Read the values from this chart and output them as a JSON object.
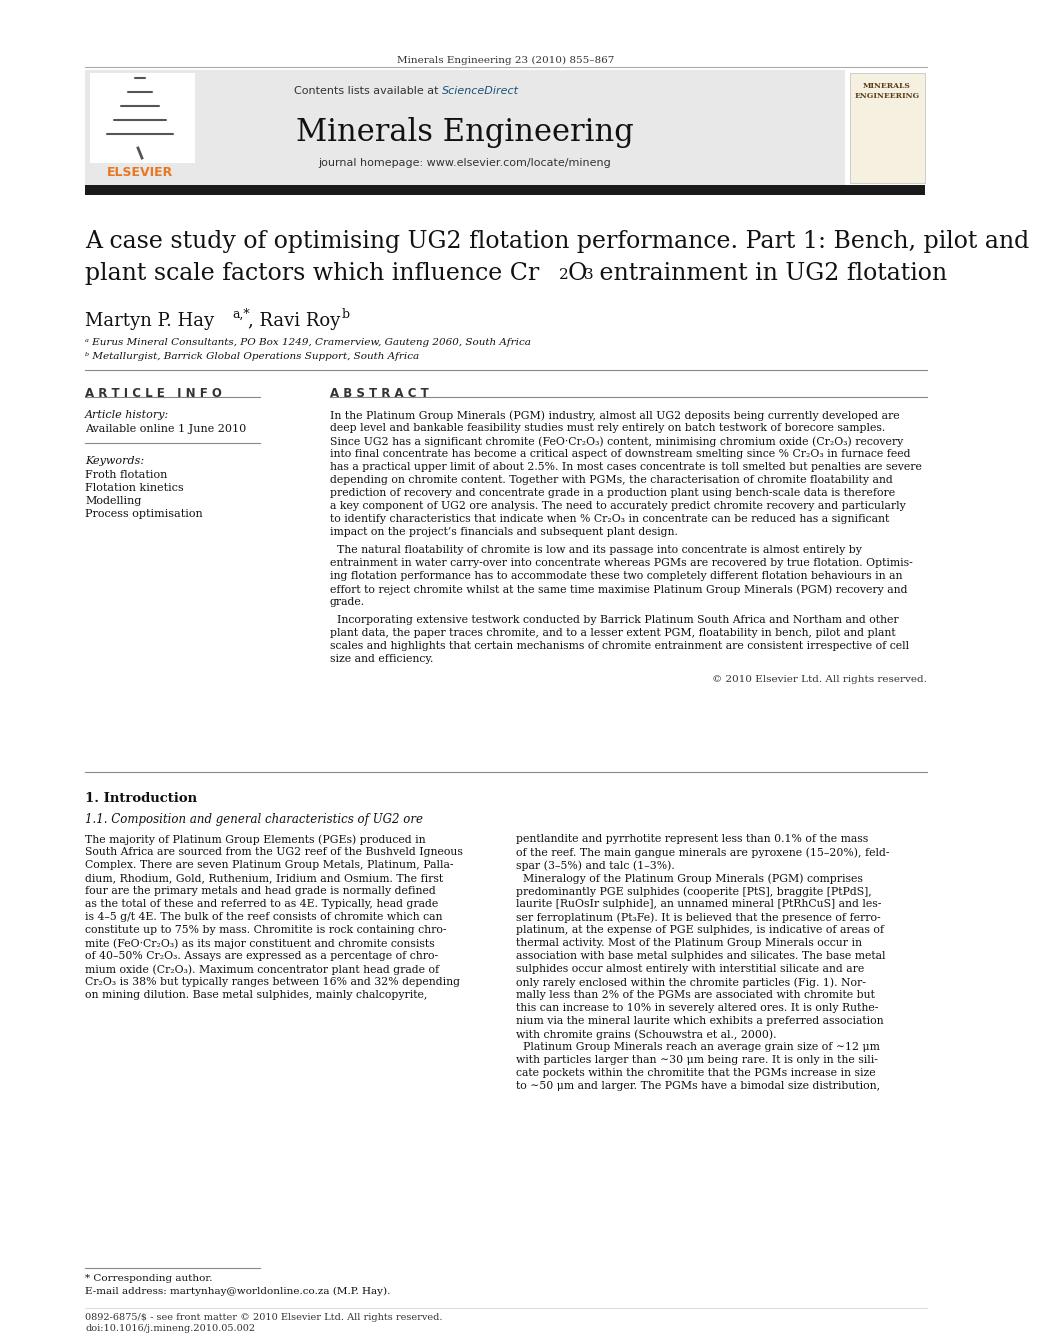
{
  "page_citation": "Minerals Engineering 23 (2010) 855–867",
  "sciencedirect_color": "#1a5276",
  "journal_name": "Minerals Engineering",
  "journal_homepage": "journal homepage: www.elsevier.com/locate/mineng",
  "title_line1": "A case study of optimising UG2 flotation performance. Part 1: Bench, pilot and",
  "title_line2_pre": "plant scale factors which influence Cr",
  "title_line2_post": " entrainment in UG2 flotation",
  "article_info_header": "A R T I C L E   I N F O",
  "abstract_header": "A B S T R A C T",
  "article_history_label": "Article history:",
  "available_online": "Available online 1 June 2010",
  "keywords_label": "Keywords:",
  "keyword1": "Froth flotation",
  "keyword2": "Flotation kinetics",
  "keyword3": "Modelling",
  "keyword4": "Process optimisation",
  "affil_a": "ᵃ Eurus Mineral Consultants, PO Box 1249, Cramerview, Gauteng 2060, South Africa",
  "affil_b": "ᵇ Metallurgist, Barrick Global Operations Support, South Africa",
  "abstract_para1": "In the Platinum Group Minerals (PGM) industry, almost all UG2 deposits being currently developed are\ndeep level and bankable feasibility studies must rely entirely on batch testwork of borecore samples.\nSince UG2 has a significant chromite (FeO·Cr₂O₃) content, minimising chromium oxide (Cr₂O₃) recovery\ninto final concentrate has become a critical aspect of downstream smelting since % Cr₂O₃ in furnace feed\nhas a practical upper limit of about 2.5%. In most cases concentrate is toll smelted but penalties are severe\ndepending on chromite content. Together with PGMs, the characterisation of chromite floatability and\nprediction of recovery and concentrate grade in a production plant using bench-scale data is therefore\na key component of UG2 ore analysis. The need to accurately predict chromite recovery and particularly\nto identify characteristics that indicate when % Cr₂O₃ in concentrate can be reduced has a significant\nimpact on the project’s financials and subsequent plant design.",
  "abstract_para2": "  The natural floatability of chromite is low and its passage into concentrate is almost entirely by\nentrainment in water carry-over into concentrate whereas PGMs are recovered by true flotation. Optimis-\ning flotation performance has to accommodate these two completely different flotation behaviours in an\neffort to reject chromite whilst at the same time maximise Platinum Group Minerals (PGM) recovery and\ngrade.",
  "abstract_para3": "  Incorporating extensive testwork conducted by Barrick Platinum South Africa and Northam and other\nplant data, the paper traces chromite, and to a lesser extent PGM, floatability in bench, pilot and plant\nscales and highlights that certain mechanisms of chromite entrainment are consistent irrespective of cell\nsize and efficiency.",
  "copyright_text": "© 2010 Elsevier Ltd. All rights reserved.",
  "section1_header": "1. Introduction",
  "section1_sub": "1.1. Composition and general characteristics of UG2 ore",
  "intro_para1": "The majority of Platinum Group Elements (PGEs) produced in\nSouth Africa are sourced from the UG2 reef of the Bushveld Igneous\nComplex. There are seven Platinum Group Metals, Platinum, Palla-\ndium, Rhodium, Gold, Ruthenium, Iridium and Osmium. The first\nfour are the primary metals and head grade is normally defined\nas the total of these and referred to as 4E. Typically, head grade\nis 4–5 g/t 4E. The bulk of the reef consists of chromite which can\nconstitute up to 75% by mass. Chromitite is rock containing chro-\nmite (FeO·Cr₂O₃) as its major constituent and chromite consists\nof 40–50% Cr₂O₃. Assays are expressed as a percentage of chro-\nmium oxide (Cr₂O₃). Maximum concentrator plant head grade of\nCr₂O₃ is 38% but typically ranges between 16% and 32% depending\non mining dilution. Base metal sulphides, mainly chalcopyrite,",
  "intro_para2_right": "pentlandite and pyrrhotite represent less than 0.1% of the mass\nof the reef. The main gangue minerals are pyroxene (15–20%), feld-\nspar (3–5%) and talc (1–3%).\n  Mineralogy of the Platinum Group Minerals (PGM) comprises\npredominantly PGE sulphides (cooperite [PtS], braggite [PtPdS],\nlaurite [RuOsIr sulphide], an unnamed mineral [PtRhCuS] and les-\nser ferroplatinum (Pt₃Fe). It is believed that the presence of ferro-\nplatinum, at the expense of PGE sulphides, is indicative of areas of\nthermal activity. Most of the Platinum Group Minerals occur in\nassociation with base metal sulphides and silicates. The base metal\nsulphides occur almost entirely with interstitial silicate and are\nonly rarely enclosed within the chromite particles (Fig. 1). Nor-\nmally less than 2% of the PGMs are associated with chromite but\nthis can increase to 10% in severely altered ores. It is only Ruthe-\nnium via the mineral laurite which exhibits a preferred association\nwith chromite grains (Schouwstra et al., 2000).\n  Platinum Group Minerals reach an average grain size of ∼12 μm\nwith particles larger than ∼30 μm being rare. It is only in the sili-\ncate pockets within the chromitite that the PGMs increase in size\nto ∼50 μm and larger. The PGMs have a bimodal size distribution,",
  "footnote1": "* Corresponding author.",
  "footnote2": "E-mail address: martynhay@worldonline.co.za (M.P. Hay).",
  "footer1": "0892-6875/$ - see front matter © 2010 Elsevier Ltd. All rights reserved.",
  "footer2": "doi:10.1016/j.mineng.2010.05.002",
  "header_bg_color": "#e8e8e8",
  "thick_bar_color": "#1a1a1a",
  "elsevier_orange": "#e87722",
  "cover_bg_color": "#f5f0e0"
}
